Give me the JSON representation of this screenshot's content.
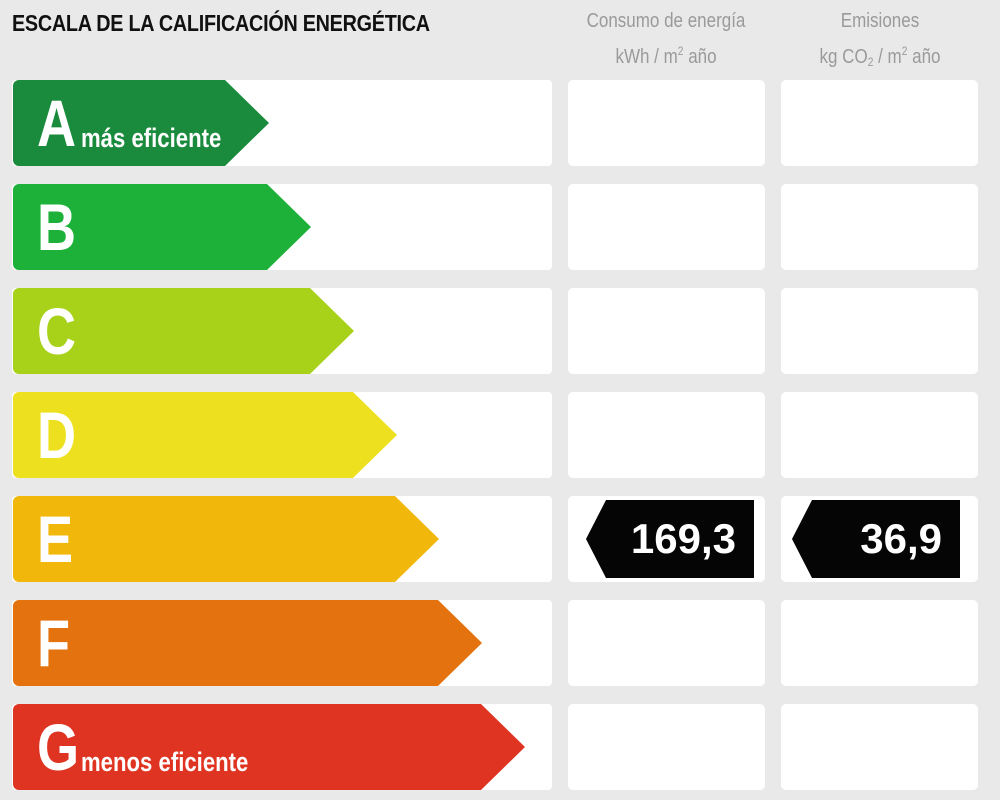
{
  "title": "ESCALA DE LA CALIFICACIÓN ENERGÉTICA",
  "columns": {
    "consumo": {
      "line1": "Consumo de energía",
      "line2_pre": "kWh / m",
      "line2_sup": "2",
      "line2_post": " año"
    },
    "emisiones": {
      "line1": "Emisiones",
      "line2_pre": "kg CO",
      "line2_sub": "2",
      "line2_mid": " / m",
      "line2_sup": "2",
      "line2_post": " año"
    }
  },
  "ratings": [
    {
      "letter": "A",
      "sublabel": "más eficiente",
      "color": "#1a8a3c"
    },
    {
      "letter": "B",
      "sublabel": "",
      "color": "#1db13a"
    },
    {
      "letter": "C",
      "sublabel": "",
      "color": "#a8d11a"
    },
    {
      "letter": "D",
      "sublabel": "",
      "color": "#ede11f"
    },
    {
      "letter": "E",
      "sublabel": "",
      "color": "#f1b70a"
    },
    {
      "letter": "F",
      "sublabel": "",
      "color": "#e3720f"
    },
    {
      "letter": "G",
      "sublabel": "menos eficiente",
      "color": "#de3421"
    }
  ],
  "current": {
    "rating": "E",
    "consumo_value": "169,3",
    "emisiones_value": "36,9"
  }
}
